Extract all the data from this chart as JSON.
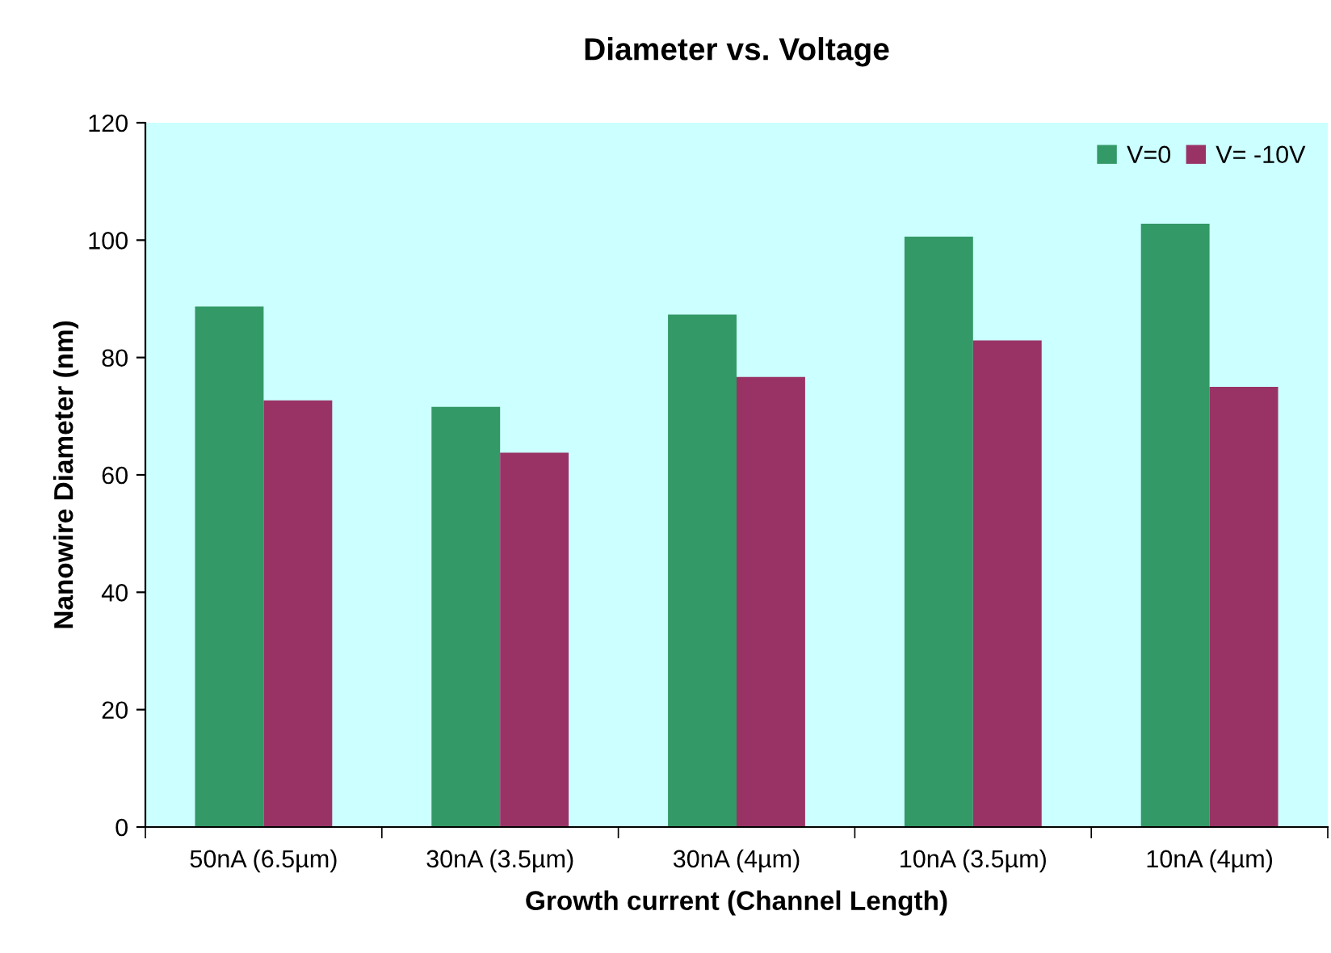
{
  "chart_data": {
    "type": "bar",
    "title": "Diameter vs. Voltage",
    "xlabel": "Growth current (Channel Length)",
    "ylabel": "Nanowire Diameter (nm)",
    "categories": [
      "50nA (6.5µm)",
      "30nA (3.5µm)",
      "30nA (4µm)",
      "10nA (3.5µm)",
      "10nA (4µm)"
    ],
    "series": [
      {
        "name": "V=0",
        "color": "#339966",
        "values": [
          88.7,
          71.6,
          87.3,
          100.6,
          102.8
        ]
      },
      {
        "name": "V= -10V",
        "color": "#993366",
        "values": [
          72.7,
          63.8,
          76.7,
          82.9,
          75.0
        ]
      }
    ],
    "ylim": [
      0,
      120
    ],
    "yticks": [
      0,
      20,
      40,
      60,
      80,
      100,
      120
    ],
    "grid": false,
    "legend": "top right"
  }
}
